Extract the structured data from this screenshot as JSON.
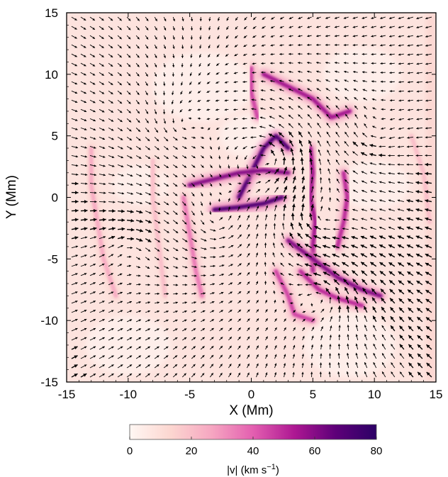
{
  "chart_data": {
    "type": "heatmap",
    "title": "",
    "xlabel": "X (Mm)",
    "ylabel": "Y (Mm)",
    "xlim": [
      -15,
      15
    ],
    "ylim": [
      -15,
      15
    ],
    "x_ticks": [
      -15,
      -10,
      -5,
      0,
      5,
      10,
      15
    ],
    "y_ticks": [
      -15,
      -10,
      -5,
      0,
      5,
      10,
      15
    ],
    "x_tick_labels": [
      "-15",
      "-10",
      "-5",
      "0",
      "5",
      "10",
      "15"
    ],
    "y_tick_labels": [
      "-15",
      "-10",
      "-5",
      "0",
      "5",
      "10",
      "15"
    ],
    "grid": false,
    "overlay": "velocity vector arrows",
    "colorbar": {
      "label": "|v|  (km s",
      "label_exponent": "−1",
      "label_close": ")",
      "range": [
        0,
        80
      ],
      "ticks": [
        0,
        20,
        40,
        60,
        80
      ],
      "tick_labels": [
        "0",
        "20",
        "40",
        "60",
        "80"
      ],
      "colors": [
        "#fff7f3",
        "#fcd6d0",
        "#f6a6c1",
        "#e35fb0",
        "#ae1893",
        "#5e0079",
        "#2c0166"
      ],
      "placement": "bottom"
    },
    "features": [
      {
        "path": [
          [
            -1,
            0
          ],
          [
            0,
            2
          ],
          [
            1,
            4
          ],
          [
            2,
            5
          ],
          [
            3,
            4
          ]
        ],
        "speed": 70
      },
      {
        "path": [
          [
            -5,
            1
          ],
          [
            -3,
            1.5
          ],
          [
            -1,
            2
          ],
          [
            1,
            2.2
          ],
          [
            3,
            2
          ]
        ],
        "speed": 60
      },
      {
        "path": [
          [
            -3,
            -1
          ],
          [
            -1,
            -0.8
          ],
          [
            1,
            -0.5
          ],
          [
            2.5,
            0
          ]
        ],
        "speed": 70
      },
      {
        "path": [
          [
            1,
            10
          ],
          [
            3,
            9
          ],
          [
            5,
            8
          ],
          [
            6.5,
            6.5
          ],
          [
            8,
            7
          ]
        ],
        "speed": 55
      },
      {
        "path": [
          [
            0,
            10.5
          ],
          [
            0,
            8.5
          ],
          [
            0.5,
            6.5
          ]
        ],
        "speed": 45
      },
      {
        "path": [
          [
            4.8,
            4
          ],
          [
            5,
            2
          ],
          [
            4.8,
            0
          ],
          [
            5.2,
            -2
          ],
          [
            5,
            -4
          ],
          [
            5,
            -6
          ]
        ],
        "speed": 55
      },
      {
        "path": [
          [
            7.5,
            2
          ],
          [
            7.8,
            0
          ],
          [
            7.5,
            -2
          ],
          [
            7,
            -4
          ]
        ],
        "speed": 50
      },
      {
        "path": [
          [
            3,
            -3.5
          ],
          [
            5,
            -5
          ],
          [
            7,
            -6.5
          ],
          [
            9,
            -7.5
          ],
          [
            10.5,
            -8
          ]
        ],
        "speed": 60
      },
      {
        "path": [
          [
            4,
            -6
          ],
          [
            5.5,
            -7.5
          ],
          [
            7,
            -8.2
          ],
          [
            9,
            -8.8
          ]
        ],
        "speed": 50
      },
      {
        "path": [
          [
            2,
            -6
          ],
          [
            3,
            -8
          ],
          [
            3.5,
            -9.5
          ],
          [
            5,
            -10
          ]
        ],
        "speed": 45
      },
      {
        "path": [
          [
            -5.5,
            0
          ],
          [
            -5,
            -3
          ],
          [
            -4.5,
            -6
          ],
          [
            -4,
            -8
          ]
        ],
        "speed": 35
      },
      {
        "path": [
          [
            -13,
            4
          ],
          [
            -13,
            1
          ],
          [
            -12.5,
            -2
          ],
          [
            -12,
            -5
          ],
          [
            -11,
            -8
          ]
        ],
        "speed": 25
      },
      {
        "path": [
          [
            -8,
            3
          ],
          [
            -8,
            0
          ],
          [
            -7.5,
            -4
          ],
          [
            -7,
            -8
          ]
        ],
        "speed": 20
      },
      {
        "path": [
          [
            13,
            5
          ],
          [
            14,
            2
          ],
          [
            14.5,
            -2
          ]
        ],
        "speed": 20
      }
    ]
  }
}
